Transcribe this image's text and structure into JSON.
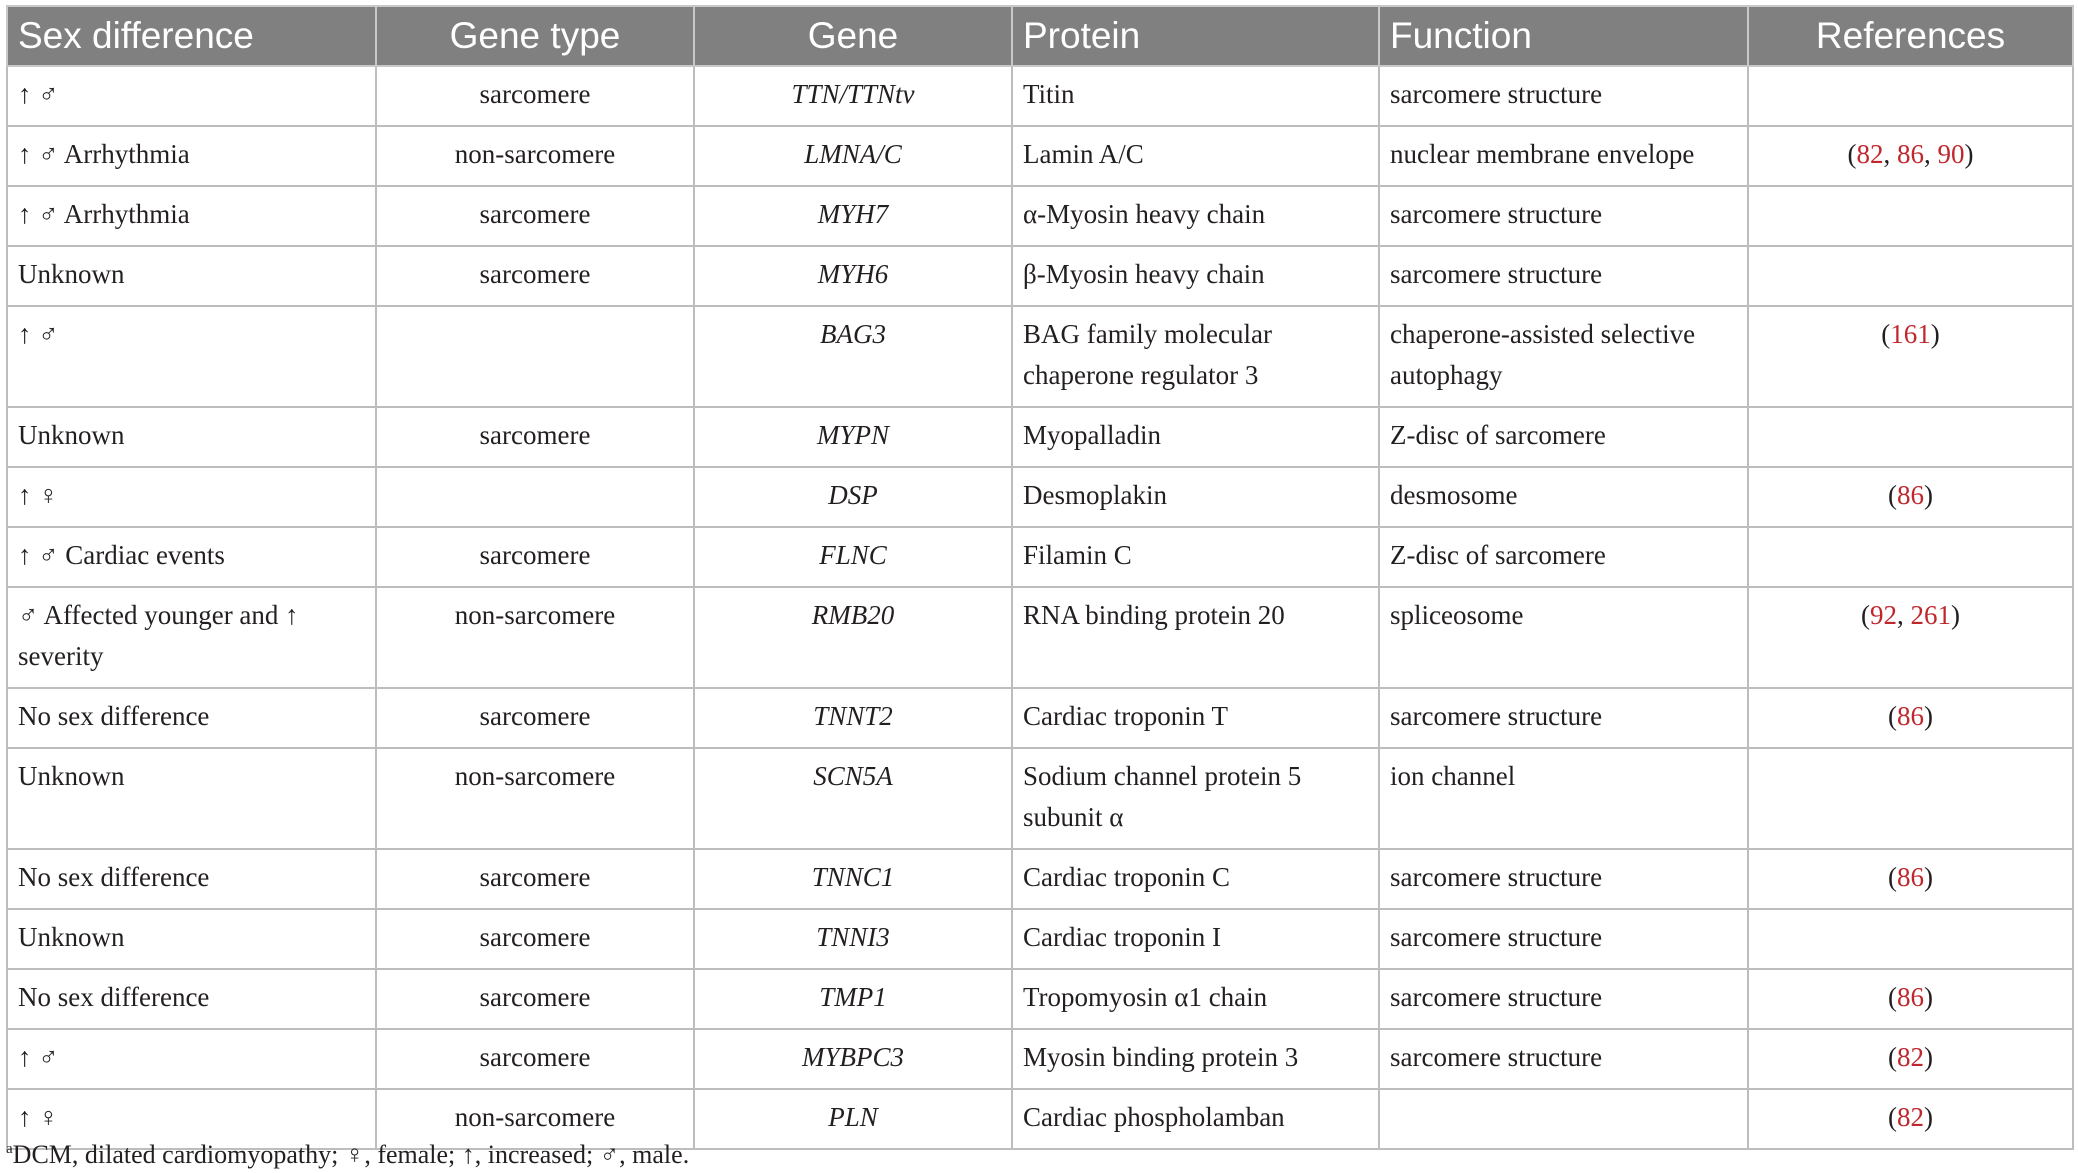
{
  "table": {
    "headers": [
      "Sex difference",
      "Gene type",
      "Gene",
      "Protein",
      "Function",
      "References"
    ],
    "rows": [
      {
        "sex_difference": "↑ ♂",
        "gene_type": "sarcomere",
        "gene": "TTN/TTNtv",
        "protein": "Titin",
        "function": "sarcomere structure",
        "refs": []
      },
      {
        "sex_difference": "↑ ♂ Arrhythmia",
        "gene_type": "non-sarcomere",
        "gene": "LMNA/C",
        "protein": "Lamin A/C",
        "function": "nuclear membrane envelope",
        "refs": [
          "82",
          "86",
          "90"
        ]
      },
      {
        "sex_difference": "↑ ♂ Arrhythmia",
        "gene_type": "sarcomere",
        "gene": "MYH7",
        "protein": "α-Myosin heavy chain",
        "function": "sarcomere structure",
        "refs": []
      },
      {
        "sex_difference": "Unknown",
        "gene_type": "sarcomere",
        "gene": "MYH6",
        "protein": "β-Myosin heavy chain",
        "function": "sarcomere structure",
        "refs": []
      },
      {
        "sex_difference": "↑ ♂",
        "gene_type": "",
        "gene": "BAG3",
        "protein": "BAG family molecular chaperone regulator 3",
        "function": "chaperone-assisted selective autophagy",
        "refs": [
          "161"
        ]
      },
      {
        "sex_difference": "Unknown",
        "gene_type": "sarcomere",
        "gene": "MYPN",
        "protein": "Myopalladin",
        "function": "Z-disc of sarcomere",
        "refs": []
      },
      {
        "sex_difference": "↑ ♀",
        "gene_type": "",
        "gene": "DSP",
        "protein": "Desmoplakin",
        "function": "desmosome",
        "refs": [
          "86"
        ]
      },
      {
        "sex_difference": "↑ ♂ Cardiac events",
        "gene_type": "sarcomere",
        "gene": "FLNC",
        "protein": "Filamin C",
        "function": "Z-disc of sarcomere",
        "refs": []
      },
      {
        "sex_difference": "♂ Affected younger and ↑ severity",
        "gene_type": "non-sarcomere",
        "gene": "RMB20",
        "protein": "RNA binding protein 20",
        "function": "spliceosome",
        "refs": [
          "92",
          "261"
        ]
      },
      {
        "sex_difference": "No sex difference",
        "gene_type": "sarcomere",
        "gene": "TNNT2",
        "protein": "Cardiac troponin T",
        "function": "sarcomere structure",
        "refs": [
          "86"
        ]
      },
      {
        "sex_difference": "Unknown",
        "gene_type": "non-sarcomere",
        "gene": "SCN5A",
        "protein": "Sodium channel protein 5 subunit α",
        "function": "ion channel",
        "refs": []
      },
      {
        "sex_difference": "No sex difference",
        "gene_type": "sarcomere",
        "gene": "TNNC1",
        "protein": "Cardiac troponin C",
        "function": "sarcomere structure",
        "refs": [
          "86"
        ]
      },
      {
        "sex_difference": "Unknown",
        "gene_type": "sarcomere",
        "gene": "TNNI3",
        "protein": "Cardiac troponin I",
        "function": "sarcomere structure",
        "refs": []
      },
      {
        "sex_difference": "No sex difference",
        "gene_type": "sarcomere",
        "gene": "TMP1",
        "protein": "Tropomyosin α1 chain",
        "function": "sarcomere structure",
        "refs": [
          "86"
        ]
      },
      {
        "sex_difference": "↑ ♂",
        "gene_type": "sarcomere",
        "gene": "MYBPC3",
        "protein": "Myosin binding protein 3",
        "function": "sarcomere structure",
        "refs": [
          "82"
        ]
      },
      {
        "sex_difference": "↑ ♀",
        "gene_type": "non-sarcomere",
        "gene": "PLN",
        "protein": "Cardiac phospholamban",
        "function": "",
        "refs": [
          "82"
        ]
      }
    ]
  },
  "footnote": {
    "marker": "a",
    "text": "DCM, dilated cardiomyopathy; ♀, female; ↑, increased; ♂, male."
  },
  "colors": {
    "header_bg": "#808080",
    "header_text": "#ffffff",
    "reference_link": "#c0272d",
    "grid_line": "#bdbdbd"
  }
}
